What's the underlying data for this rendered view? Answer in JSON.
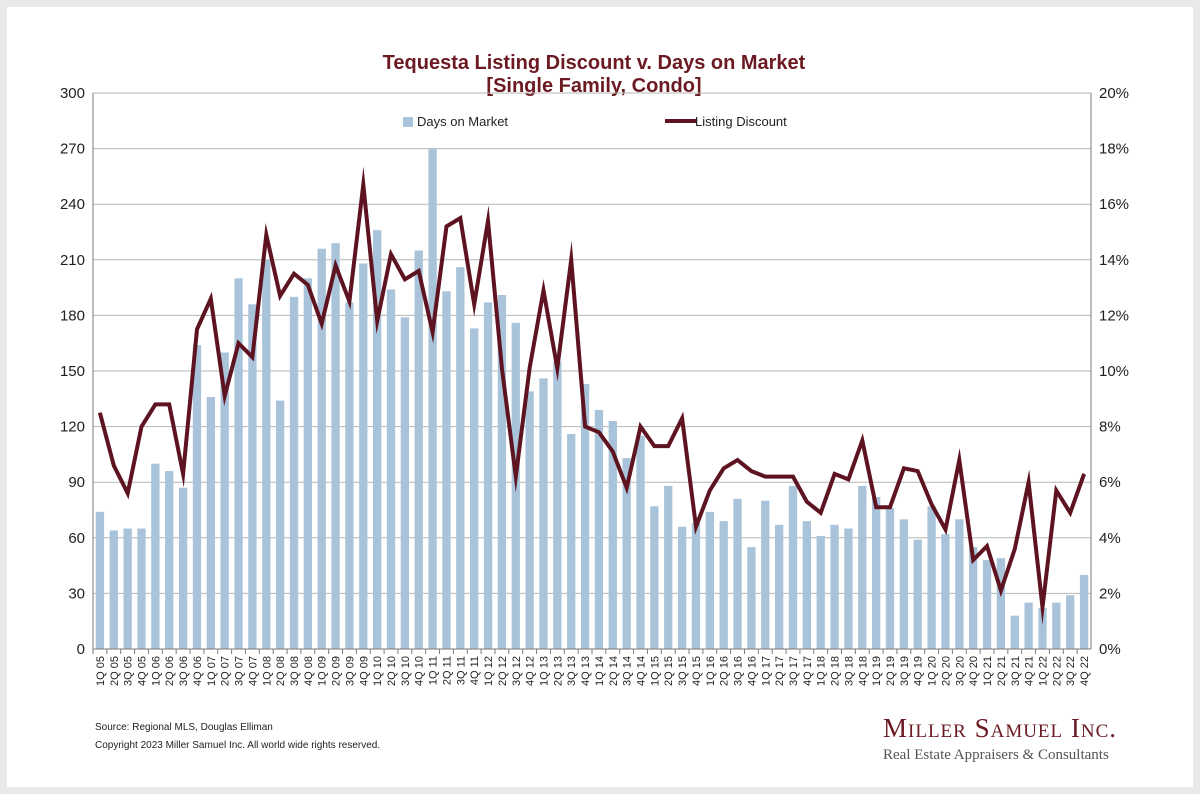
{
  "title_line1": "Tequesta Listing Discount v. Days on Market",
  "title_line2": "[Single Family, Condo]",
  "footer": {
    "source": "Source: Regional MLS, Douglas Elliman",
    "copyright": "Copyright 2023 Miller Samuel Inc.  All world wide rights reserved."
  },
  "brand": {
    "name": "Miller Samuel Inc.",
    "tagline": "Real Estate Appraisers & Consultants"
  },
  "colors": {
    "bars": "#a9c4da",
    "line": "#5e1320",
    "title": "#6b1a22",
    "grid": "#b5b5b5"
  },
  "chart_data": {
    "type": "bar",
    "title": "Tequesta Listing Discount v. Days on Market [Single Family, Condo]",
    "legend_position": "top",
    "grid": true,
    "categories": [
      "1Q 05",
      "2Q 05",
      "3Q 05",
      "4Q 05",
      "1Q 06",
      "2Q 06",
      "3Q 06",
      "4Q 06",
      "1Q 07",
      "2Q 07",
      "3Q 07",
      "4Q 07",
      "1Q 08",
      "2Q 08",
      "3Q 08",
      "4Q 08",
      "1Q 09",
      "2Q 09",
      "3Q 09",
      "4Q 09",
      "1Q 10",
      "2Q 10",
      "3Q 10",
      "4Q 10",
      "1Q 11",
      "2Q 11",
      "3Q 11",
      "4Q 11",
      "1Q 12",
      "2Q 12",
      "3Q 12",
      "4Q 12",
      "1Q 13",
      "2Q 13",
      "3Q 13",
      "4Q 13",
      "1Q 14",
      "2Q 14",
      "3Q 14",
      "4Q 14",
      "1Q 15",
      "2Q 15",
      "3Q 15",
      "4Q 15",
      "1Q 16",
      "2Q 16",
      "3Q 16",
      "4Q 16",
      "1Q 17",
      "2Q 17",
      "3Q 17",
      "4Q 17",
      "1Q 18",
      "2Q 18",
      "3Q 18",
      "4Q 18",
      "1Q 19",
      "2Q 19",
      "3Q 19",
      "4Q 19",
      "1Q 20",
      "2Q 20",
      "3Q 20",
      "4Q 20",
      "1Q 21",
      "2Q 21",
      "3Q 21",
      "4Q 21",
      "1Q 22",
      "2Q 22",
      "3Q 22",
      "4Q 22"
    ],
    "y_left": {
      "ticks": [
        "0",
        "30",
        "60",
        "90",
        "120",
        "150",
        "180",
        "210",
        "240",
        "270",
        "300"
      ],
      "range": [
        0,
        300
      ]
    },
    "y_right": {
      "ticks": [
        "0%",
        "2%",
        "4%",
        "6%",
        "8%",
        "10%",
        "12%",
        "14%",
        "16%",
        "18%",
        "20%"
      ],
      "range": [
        0,
        20
      ]
    },
    "series": [
      {
        "name": "Days on Market",
        "type": "bar",
        "axis": "left",
        "values": [
          74,
          64,
          65,
          65,
          100,
          96,
          87,
          164,
          136,
          160,
          200,
          186,
          210,
          134,
          190,
          200,
          216,
          219,
          187,
          208,
          226,
          194,
          179,
          215,
          270,
          193,
          206,
          173,
          187,
          191,
          176,
          139,
          146,
          155,
          116,
          143,
          129,
          123,
          103,
          115,
          77,
          88,
          66,
          68,
          74,
          69,
          81,
          55,
          80,
          67,
          88,
          69,
          61,
          67,
          65,
          88,
          82,
          76,
          70,
          59,
          77,
          62,
          70,
          55,
          48,
          49,
          18,
          25,
          22,
          25,
          29,
          40
        ]
      },
      {
        "name": "Listing Discount",
        "type": "line",
        "axis": "right",
        "values": [
          8.5,
          6.6,
          5.6,
          8.0,
          8.8,
          8.8,
          6.3,
          11.5,
          12.6,
          9.1,
          11.0,
          10.5,
          14.9,
          12.7,
          13.5,
          13.1,
          11.7,
          13.8,
          12.5,
          16.7,
          11.8,
          14.2,
          13.3,
          13.6,
          11.4,
          15.2,
          15.5,
          12.4,
          15.4,
          10.1,
          6.2,
          10.1,
          12.9,
          10.1,
          14.0,
          8.0,
          7.8,
          7.1,
          5.8,
          8.0,
          7.3,
          7.3,
          8.3,
          4.4,
          5.7,
          6.5,
          6.8,
          6.4,
          6.2,
          6.2,
          6.2,
          5.3,
          4.9,
          6.3,
          6.1,
          7.5,
          5.1,
          5.1,
          6.5,
          6.4,
          5.2,
          4.3,
          6.8,
          3.2,
          3.7,
          2.1,
          3.6,
          6.0,
          1.5,
          5.7,
          4.9,
          6.3
        ]
      }
    ]
  }
}
